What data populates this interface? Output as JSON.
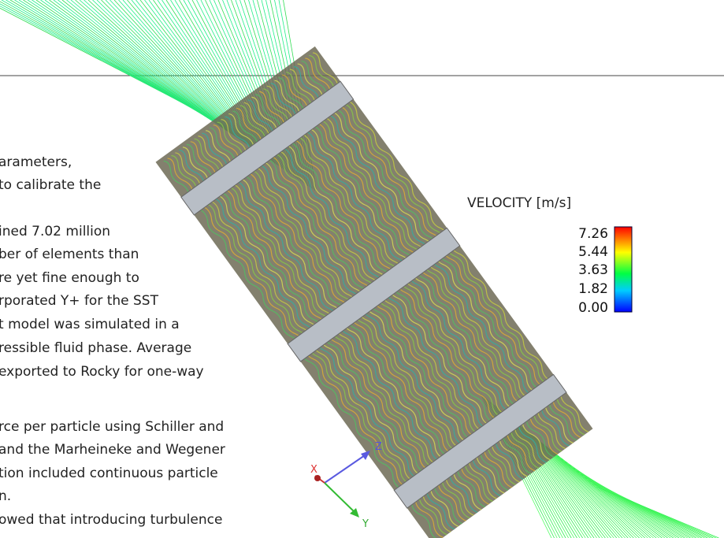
{
  "text_lines": [
    "arameters,",
    "to calibrate the",
    "ined 7.02 million",
    "ber of elements than",
    "re yet fine enough to",
    "rporated Y+ for the SST",
    "t model was simulated in a",
    "ressible fluid phase. Average",
    "exported to Rocky for one-way",
    "rce per particle using Schiller and",
    "and the Marheineke and Wegener",
    "tion included continuous particle",
    "n.",
    "owed that introducing turbulence"
  ],
  "legend": {
    "title": "VELOCITY [m/s]",
    "labels": [
      "7.26",
      "5.44",
      "3.63",
      "1.82",
      "0.00"
    ]
  },
  "axes": {
    "x": "X",
    "y": "Y",
    "z": "Z"
  }
}
